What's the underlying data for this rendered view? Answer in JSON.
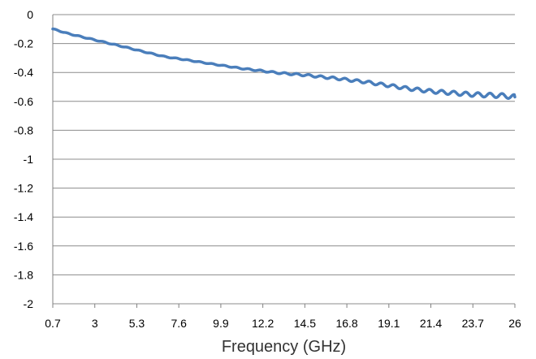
{
  "chart_data": {
    "type": "line",
    "title": "",
    "xlabel": "Frequency (GHz)",
    "ylabel": "",
    "x_tick_labels": [
      "0.7",
      "3",
      "5.3",
      "7.6",
      "9.9",
      "12.2",
      "14.5",
      "16.8",
      "19.1",
      "21.4",
      "23.7",
      "26"
    ],
    "y_tick_labels": [
      "0",
      "-0.2",
      "-0.4",
      "-0.6",
      "-0.8",
      "-1",
      "-1.2",
      "-1.4",
      "-1.6",
      "-1.8",
      "-2"
    ],
    "xlim": [
      0.7,
      26
    ],
    "ylim": [
      -2,
      0
    ],
    "grid": "horizontal",
    "legend": "none",
    "series_color": "#4a7ebb",
    "grid_color": "#8c8c8c",
    "series": [
      {
        "x": [
          0.7,
          1.0,
          1.5,
          2.0,
          2.5,
          3.0,
          3.5,
          4.0,
          4.5,
          5.0,
          5.3,
          5.8,
          6.3,
          6.8,
          7.3,
          7.6,
          8.1,
          8.6,
          9.1,
          9.6,
          9.9,
          10.4,
          10.9,
          11.4,
          11.9,
          12.2,
          12.7,
          13.2,
          13.7,
          14.2,
          14.5,
          15.0,
          15.5,
          16.0,
          16.5,
          16.8,
          17.3,
          17.8,
          18.3,
          18.8,
          19.1,
          19.6,
          20.1,
          20.6,
          21.1,
          21.4,
          21.9,
          22.4,
          22.9,
          23.4,
          23.7,
          24.2,
          24.7,
          25.2,
          25.7,
          26.0
        ],
        "values": [
          -0.1,
          -0.11,
          -0.13,
          -0.145,
          -0.16,
          -0.175,
          -0.19,
          -0.205,
          -0.22,
          -0.235,
          -0.245,
          -0.26,
          -0.275,
          -0.29,
          -0.3,
          -0.305,
          -0.315,
          -0.325,
          -0.335,
          -0.345,
          -0.35,
          -0.36,
          -0.37,
          -0.378,
          -0.385,
          -0.39,
          -0.398,
          -0.405,
          -0.41,
          -0.415,
          -0.418,
          -0.425,
          -0.432,
          -0.438,
          -0.445,
          -0.45,
          -0.458,
          -0.465,
          -0.475,
          -0.485,
          -0.49,
          -0.5,
          -0.51,
          -0.518,
          -0.525,
          -0.53,
          -0.535,
          -0.54,
          -0.545,
          -0.55,
          -0.552,
          -0.555,
          -0.558,
          -0.56,
          -0.565,
          -0.57
        ]
      }
    ]
  }
}
